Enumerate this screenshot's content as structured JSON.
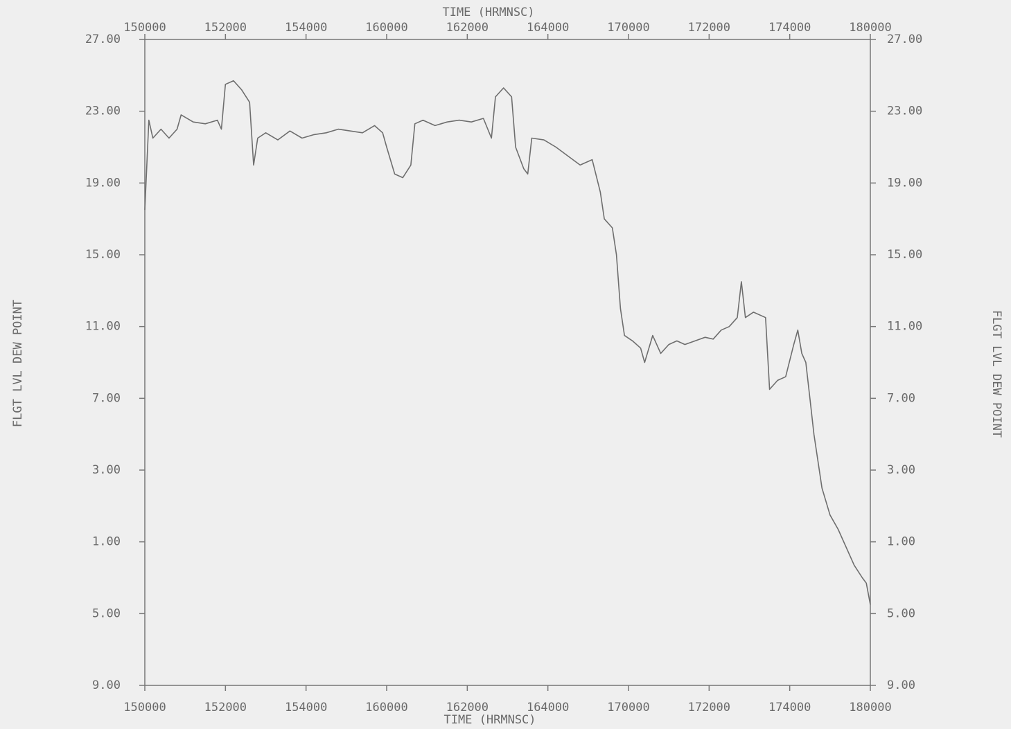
{
  "chart_data": {
    "type": "line",
    "xlabel": "TIME (HRMNSC)",
    "ylabel": "FLGT LVL DEW POINT",
    "xlim": [
      150000,
      180000
    ],
    "xticks": [
      150000,
      152000,
      154000,
      160000,
      162000,
      164000,
      170000,
      172000,
      174000,
      180000
    ],
    "ylim": [
      -9,
      27
    ],
    "yticks": [
      {
        "value": 27,
        "label": "27.00"
      },
      {
        "value": 23,
        "label": "23.00"
      },
      {
        "value": 19,
        "label": "19.00"
      },
      {
        "value": 15,
        "label": "15.00"
      },
      {
        "value": 11,
        "label": "11.00"
      },
      {
        "value": 7,
        "label": "7.00"
      },
      {
        "value": 3,
        "label": "3.00"
      },
      {
        "value": -1,
        "label": "1.00"
      },
      {
        "value": -5,
        "label": "5.00"
      },
      {
        "value": -9,
        "label": "9.00"
      }
    ],
    "color": "#6e6e6e",
    "x": [
      150000,
      150100,
      150200,
      150400,
      150600,
      150800,
      150900,
      151200,
      151500,
      151800,
      151900,
      152000,
      152200,
      152400,
      152600,
      152700,
      152800,
      153000,
      153300,
      153600,
      153900,
      154200,
      154500,
      154800,
      155100,
      155400,
      155700,
      155900,
      160000,
      160200,
      160400,
      160600,
      160700,
      160900,
      161200,
      161500,
      161800,
      162100,
      162400,
      162600,
      162700,
      162900,
      163100,
      163200,
      163400,
      163500,
      163600,
      163900,
      164200,
      164500,
      164800,
      165100,
      165300,
      165400,
      165600,
      165700,
      165800,
      165900,
      170100,
      170300,
      170400,
      170600,
      170800,
      171000,
      171200,
      171400,
      171900,
      172100,
      172300,
      172500,
      172700,
      172800,
      172900,
      173100,
      173400,
      173500,
      173700,
      173900,
      174100,
      174200,
      174300,
      174400,
      174500,
      174600,
      174700,
      174800,
      175000,
      175200,
      175400,
      175600,
      175800,
      175900,
      180000
    ],
    "values": [
      17.5,
      22.5,
      21.5,
      22,
      21.5,
      22,
      22.8,
      22.4,
      22.3,
      22.5,
      22,
      24.5,
      24.7,
      24.2,
      23.5,
      20,
      21.5,
      21.8,
      21.4,
      21.9,
      21.5,
      21.7,
      21.8,
      22,
      21.9,
      21.8,
      22.2,
      21.8,
      21,
      19.5,
      19.3,
      20,
      22.3,
      22.5,
      22.2,
      22.4,
      22.5,
      22.4,
      22.6,
      21.5,
      23.8,
      24.3,
      23.8,
      21,
      19.8,
      19.5,
      21.5,
      21.4,
      21,
      20.5,
      20,
      20.3,
      18.5,
      17,
      16.5,
      15,
      12,
      10.5,
      10.2,
      9.8,
      9,
      10.5,
      9.5,
      10,
      10.2,
      10,
      10.4,
      10.3,
      10.8,
      11,
      11.5,
      13.5,
      11.5,
      11.8,
      11.5,
      7.5,
      8,
      8.2,
      10,
      10.8,
      9.5,
      9,
      7,
      5,
      3.5,
      2,
      0.5,
      -0.3,
      -1.3,
      -2.3,
      -3,
      -3.3,
      -4.5
    ]
  }
}
